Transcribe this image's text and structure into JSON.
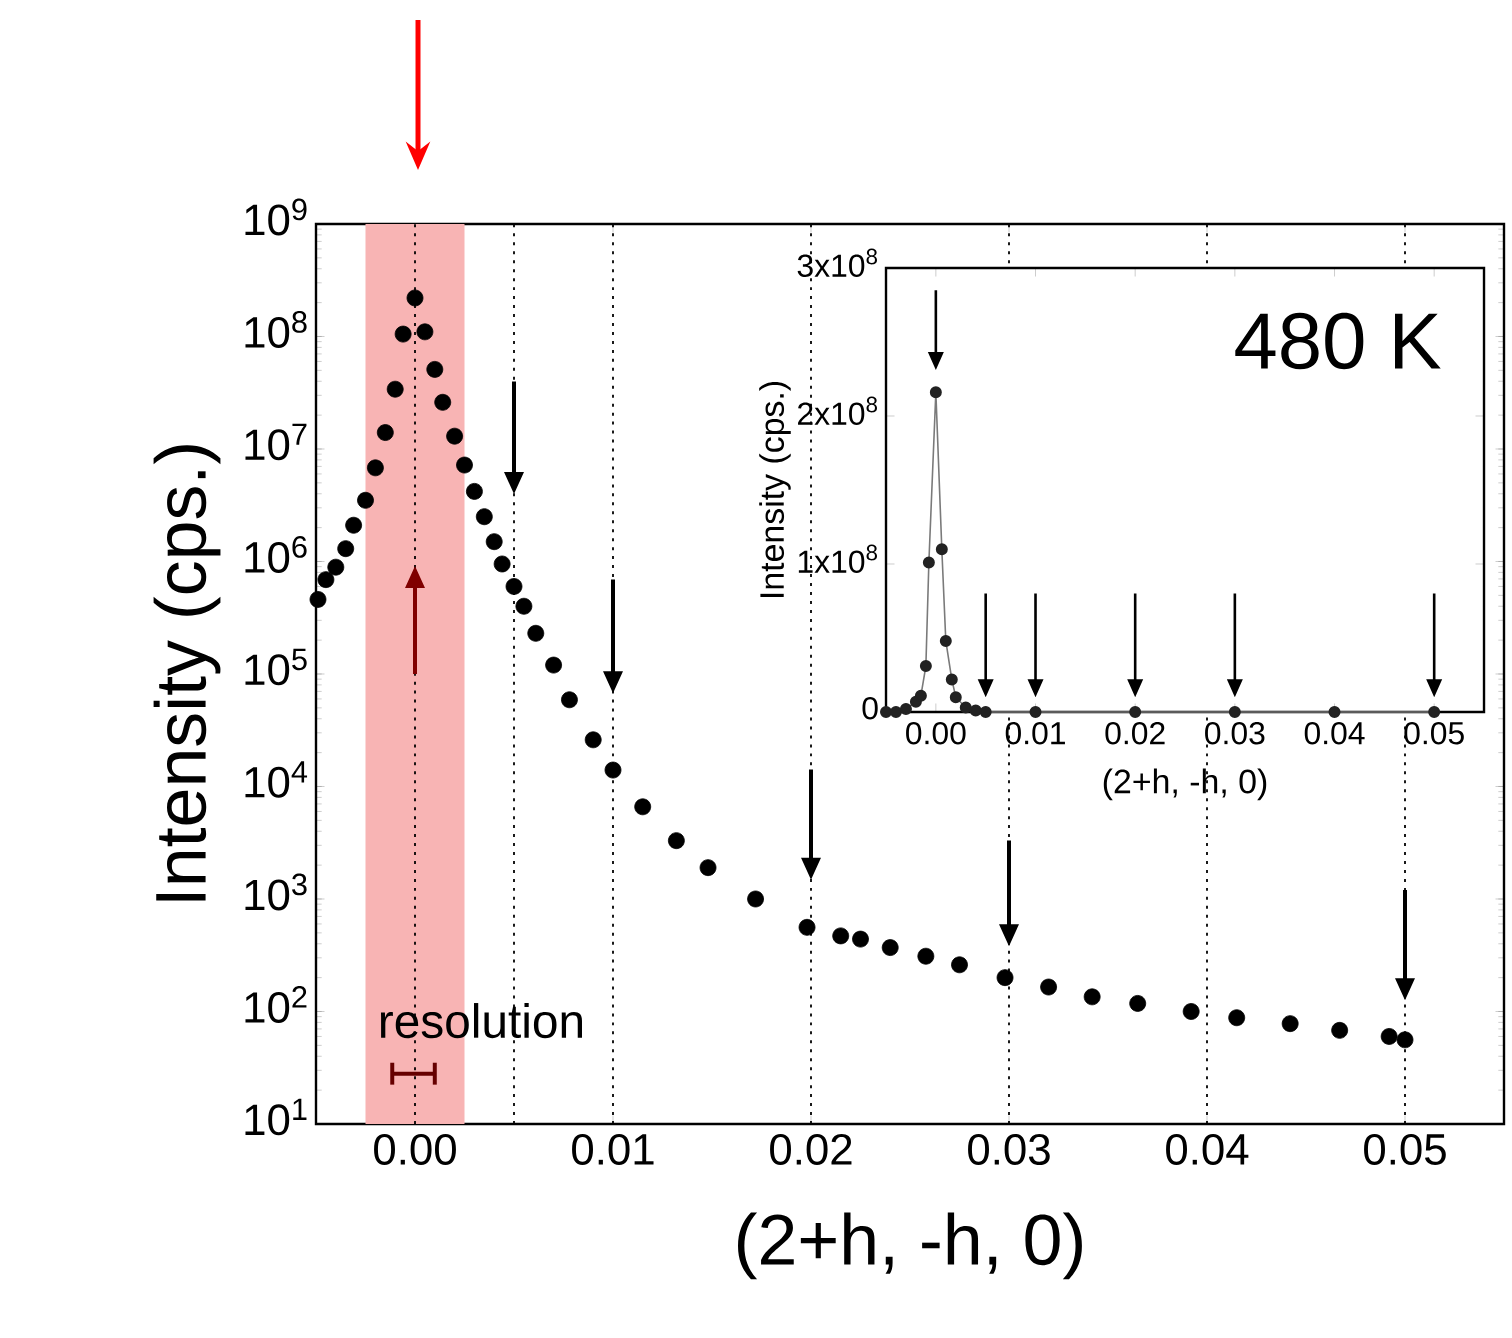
{
  "chart_data": [
    {
      "type": "scatter",
      "xlabel": "(2+h, -h, 0)",
      "ylabel": "Intensity (cps.)",
      "log": "y",
      "marker": "circle",
      "grid": false,
      "xlim": [
        -0.005,
        0.055
      ],
      "ylim": [
        10,
        1000000000
      ],
      "xticks": [
        {
          "value": 0,
          "label": "0.00"
        },
        {
          "value": 0.01,
          "label": "0.01"
        },
        {
          "value": 0.02,
          "label": "0.02"
        },
        {
          "value": 0.03,
          "label": "0.03"
        },
        {
          "value": 0.04,
          "label": "0.04"
        },
        {
          "value": 0.05,
          "label": "0.05"
        }
      ],
      "yticks": [
        {
          "value": 10,
          "label": "10$^{1}$"
        },
        {
          "value": 100,
          "label": "10$^{2}$"
        },
        {
          "value": 1000,
          "label": "10$^{3}$"
        },
        {
          "value": 10000,
          "label": "10$^{4}$"
        },
        {
          "value": 100000,
          "label": "10$^{5}$"
        },
        {
          "value": 1000000,
          "label": "10$^{6}$"
        },
        {
          "value": 10000000,
          "label": "10$^{7}$"
        },
        {
          "value": 100000000,
          "label": "10$^{8}$"
        },
        {
          "value": 1000000000,
          "label": "10$^{9}$"
        }
      ],
      "bands": [
        {
          "axis": "x",
          "from": -0.0025,
          "to": 0.0025,
          "color": "#f8b4b4"
        }
      ],
      "ref_lines": [
        {
          "axis": "x",
          "value": 0,
          "line_style": "dotted"
        },
        {
          "axis": "x",
          "value": 0.005,
          "line_style": "dotted"
        },
        {
          "axis": "x",
          "value": 0.01,
          "line_style": "dotted"
        },
        {
          "axis": "x",
          "value": 0.02,
          "line_style": "dotted"
        },
        {
          "axis": "x",
          "value": 0.03,
          "line_style": "dotted"
        },
        {
          "axis": "x",
          "value": 0.04,
          "line_style": "dotted"
        },
        {
          "axis": "x",
          "value": 0.05,
          "line_style": "dotted"
        }
      ],
      "annotations": [
        "resolution"
      ],
      "x": [
        -0.0049,
        -0.0045,
        -0.004,
        -0.0035,
        -0.0031,
        -0.0025,
        -0.002,
        -0.0015,
        -0.001,
        -0.0006,
        0,
        0.0005,
        0.001,
        0.0014,
        0.002,
        0.0025,
        0.003,
        0.0035,
        0.004,
        0.0044,
        0.005,
        0.0055,
        0.0061,
        0.007,
        0.0078,
        0.009,
        0.01,
        0.0115,
        0.0132,
        0.0148,
        0.0172,
        0.0198,
        0.0215,
        0.0225,
        0.024,
        0.0258,
        0.0275,
        0.0298,
        0.032,
        0.0342,
        0.0365,
        0.0392,
        0.0415,
        0.0442,
        0.0467,
        0.0492,
        0.05
      ],
      "series": [
        {
          "color": "#000000",
          "values": [
            460000,
            690000,
            890000,
            1300000,
            2100000,
            3500000,
            6800000,
            14000000,
            34000000,
            105000000,
            220000000,
            110000000,
            51000000,
            26000000,
            13000000,
            7200000,
            4200000,
            2500000,
            1500000,
            950000,
            600000,
            400000,
            230000,
            120000,
            59000,
            26000,
            14000,
            6600,
            3300,
            1900,
            1000,
            560,
            470,
            440,
            370,
            310,
            260,
            200,
            165,
            135,
            118,
            100,
            88,
            78,
            68,
            60,
            56
          ]
        }
      ]
    },
    {
      "type": "line",
      "xlabel": "(2+h, -h, 0)",
      "ylabel": "Intensity (cps.)",
      "marker": "circle",
      "grid": false,
      "xlim": [
        -0.005,
        0.055
      ],
      "ylim": [
        0,
        300000000
      ],
      "xticks": [
        {
          "value": 0,
          "label": "0.00"
        },
        {
          "value": 0.01,
          "label": "0.01"
        },
        {
          "value": 0.02,
          "label": "0.02"
        },
        {
          "value": 0.03,
          "label": "0.03"
        },
        {
          "value": 0.04,
          "label": "0.04"
        },
        {
          "value": 0.05,
          "label": "0.05"
        }
      ],
      "yticks": [
        0,
        {
          "value": 100000000,
          "label": "1x10$^{8}$"
        },
        {
          "value": 200000000,
          "label": "2x10$^{8}$"
        },
        {
          "value": 300000000,
          "label": "3x10$^{8}$"
        }
      ],
      "annotations": [
        "480 K"
      ],
      "x": [
        -0.005,
        -0.004,
        -0.003,
        -0.002,
        -0.0015,
        -0.001,
        -0.0007,
        0,
        0.0006,
        0.001,
        0.0016,
        0.002,
        0.003,
        0.004,
        0.005,
        0.01,
        0.02,
        0.03,
        0.04,
        0.05
      ],
      "series": [
        {
          "color": "#222222",
          "values": [
            0,
            0,
            2000000,
            7000000,
            11000000,
            31000000,
            101000000,
            216000000,
            110000000,
            48000000,
            22000000,
            10000000,
            3000000,
            1000000,
            0,
            0,
            0,
            0,
            0,
            0
          ]
        }
      ]
    }
  ]
}
